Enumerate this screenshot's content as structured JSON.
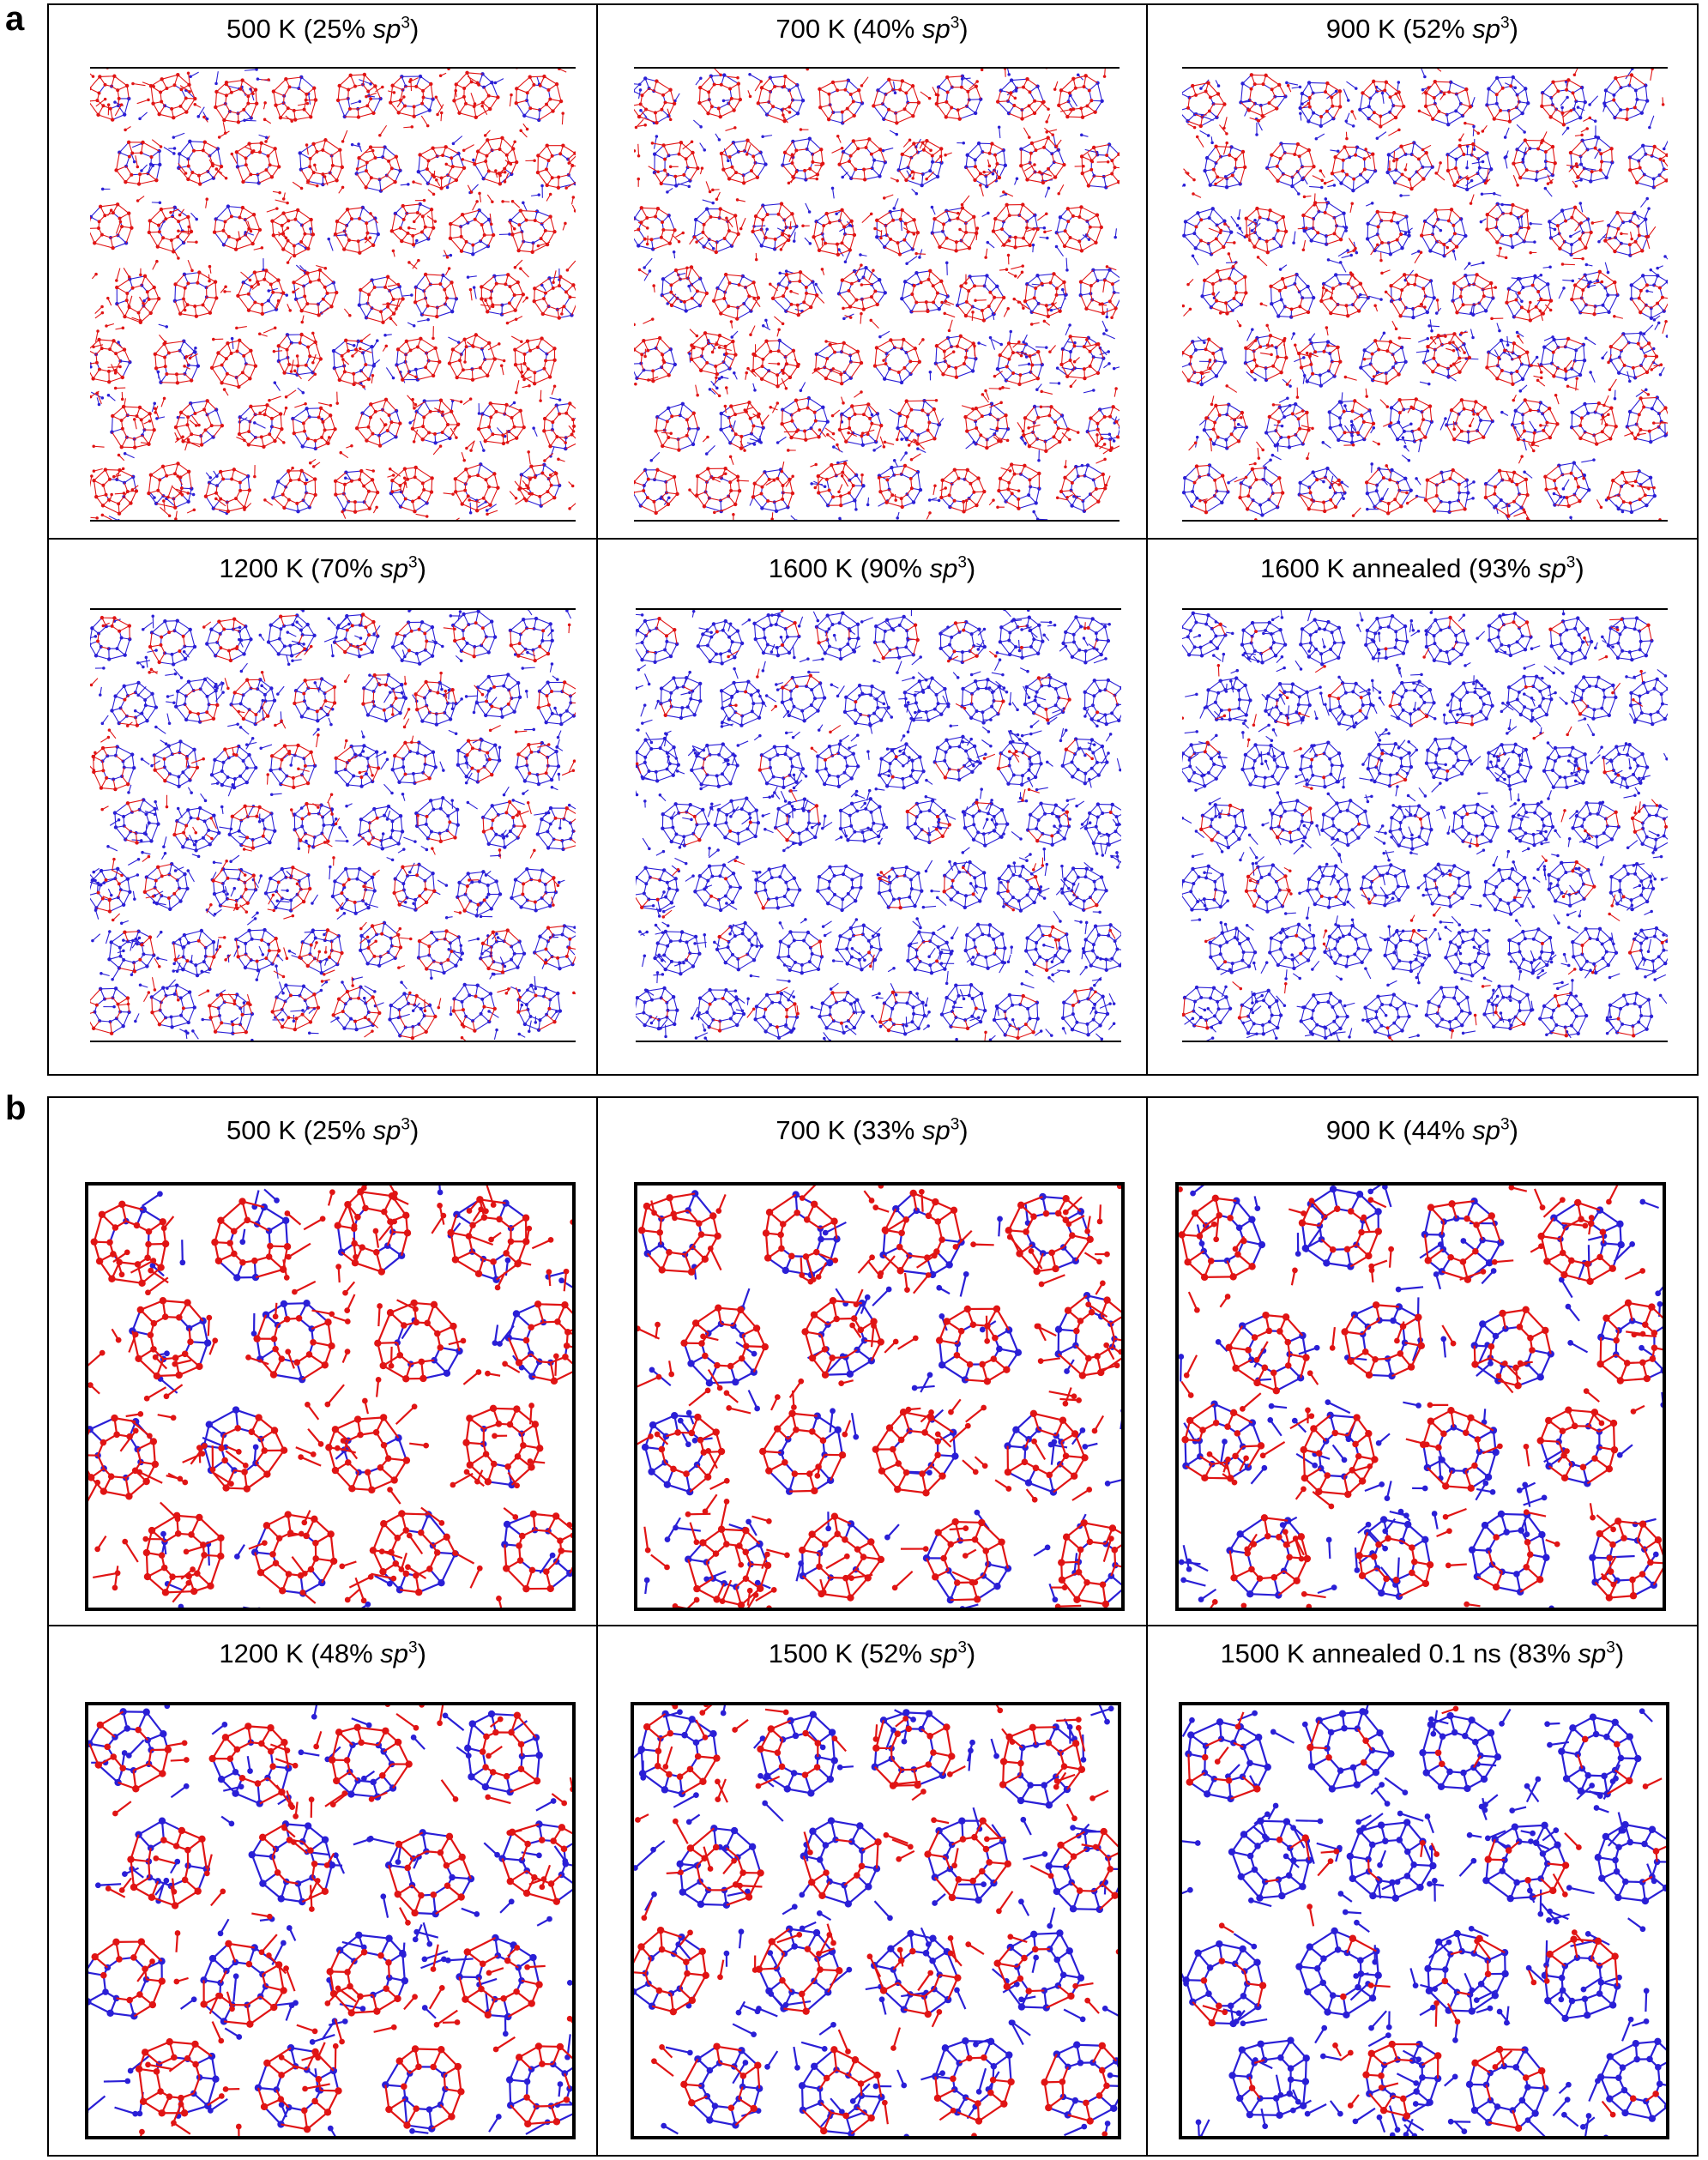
{
  "panels": [
    {
      "letter": "a",
      "cells": [
        {
          "temp": "500 K (25% ",
          "sp": "sp",
          "sup": "3",
          "close": ")",
          "sp3_fraction": 0.25
        },
        {
          "temp": "700 K (40% ",
          "sp": "sp",
          "sup": "3",
          "close": ")",
          "sp3_fraction": 0.4
        },
        {
          "temp": "900 K (52% ",
          "sp": "sp",
          "sup": "3",
          "close": ")",
          "sp3_fraction": 0.52
        },
        {
          "temp": "1200 K (70% ",
          "sp": "sp",
          "sup": "3",
          "close": ")",
          "sp3_fraction": 0.7
        },
        {
          "temp": "1600 K (90% ",
          "sp": "sp",
          "sup": "3",
          "close": ")",
          "sp3_fraction": 0.9
        },
        {
          "temp": "1600 K annealed (93% ",
          "sp": "sp",
          "sup": "3",
          "close": ")",
          "sp3_fraction": 0.93
        }
      ]
    },
    {
      "letter": "b",
      "cells": [
        {
          "temp": "500 K (25% ",
          "sp": "sp",
          "sup": "3",
          "close": ")",
          "sp3_fraction": 0.25
        },
        {
          "temp": "700 K (33% ",
          "sp": "sp",
          "sup": "3",
          "close": ")",
          "sp3_fraction": 0.33
        },
        {
          "temp": "900 K (44% ",
          "sp": "sp",
          "sup": "3",
          "close": ")",
          "sp3_fraction": 0.44
        },
        {
          "temp": "1200 K (48% ",
          "sp": "sp",
          "sup": "3",
          "close": ")",
          "sp3_fraction": 0.48
        },
        {
          "temp": "1500 K (52% ",
          "sp": "sp",
          "sup": "3",
          "close": ")",
          "sp3_fraction": 0.52
        },
        {
          "temp": "1500 K annealed 0.1 ns (83% ",
          "sp": "sp",
          "sup": "3",
          "close": ")",
          "sp3_fraction": 0.83
        }
      ]
    }
  ],
  "colors": {
    "sp3_atoms": "#2a1fd6",
    "sp2_atoms": "#e01414",
    "frame": "#000000"
  }
}
